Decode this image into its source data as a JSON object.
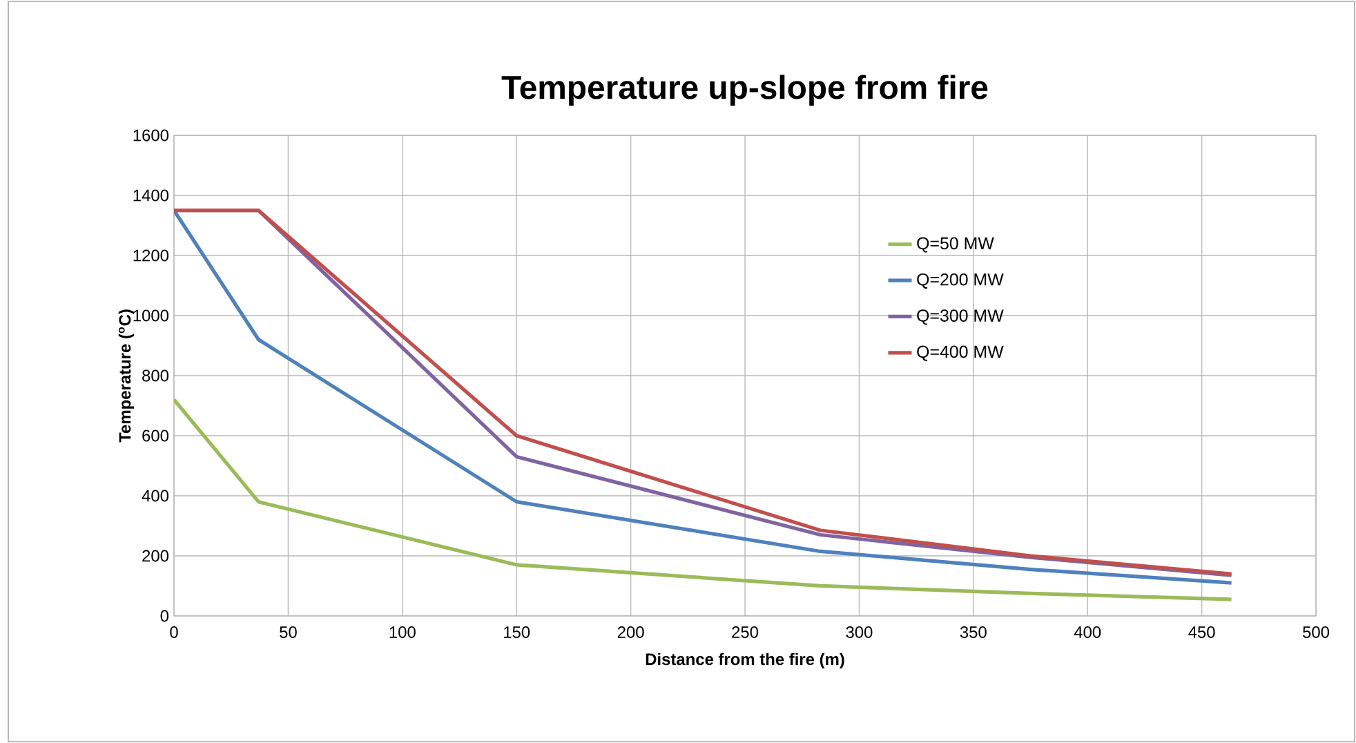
{
  "chart_data": {
    "type": "line",
    "title": "Temperature up-slope from fire",
    "xlabel": "Distance from the fire (m)",
    "ylabel": "Temperature ($^{o}$C)",
    "xlim": [
      0,
      500
    ],
    "xticks": [
      0,
      50,
      100,
      150,
      200,
      250,
      300,
      350,
      400,
      450,
      500
    ],
    "ylim": [
      0,
      1600
    ],
    "yticks": [
      0,
      200,
      400,
      600,
      800,
      1000,
      1200,
      1400,
      1600
    ],
    "grid": true,
    "legend": "right",
    "marker": "none",
    "line_style": "solid",
    "series": [
      {
        "name": "Q=50 MW",
        "color": "#9bbb59",
        "x": [
          0,
          37,
          150,
          283,
          375,
          463
        ],
        "values": [
          720,
          380,
          170,
          100,
          75,
          55
        ]
      },
      {
        "name": "Q=200 MW",
        "color": "#4f81bd",
        "x": [
          0,
          37,
          150,
          283,
          375,
          463
        ],
        "values": [
          1350,
          920,
          380,
          215,
          155,
          110
        ]
      },
      {
        "name": "Q=300 MW",
        "color": "#8064a2",
        "x": [
          0,
          37,
          150,
          283,
          375,
          463
        ],
        "values": [
          1350,
          1350,
          530,
          270,
          195,
          135
        ]
      },
      {
        "name": "Q=400 MW",
        "color": "#c0504d",
        "x": [
          0,
          37,
          150,
          283,
          375,
          463
        ],
        "values": [
          1350,
          1350,
          600,
          285,
          200,
          140
        ]
      }
    ]
  }
}
